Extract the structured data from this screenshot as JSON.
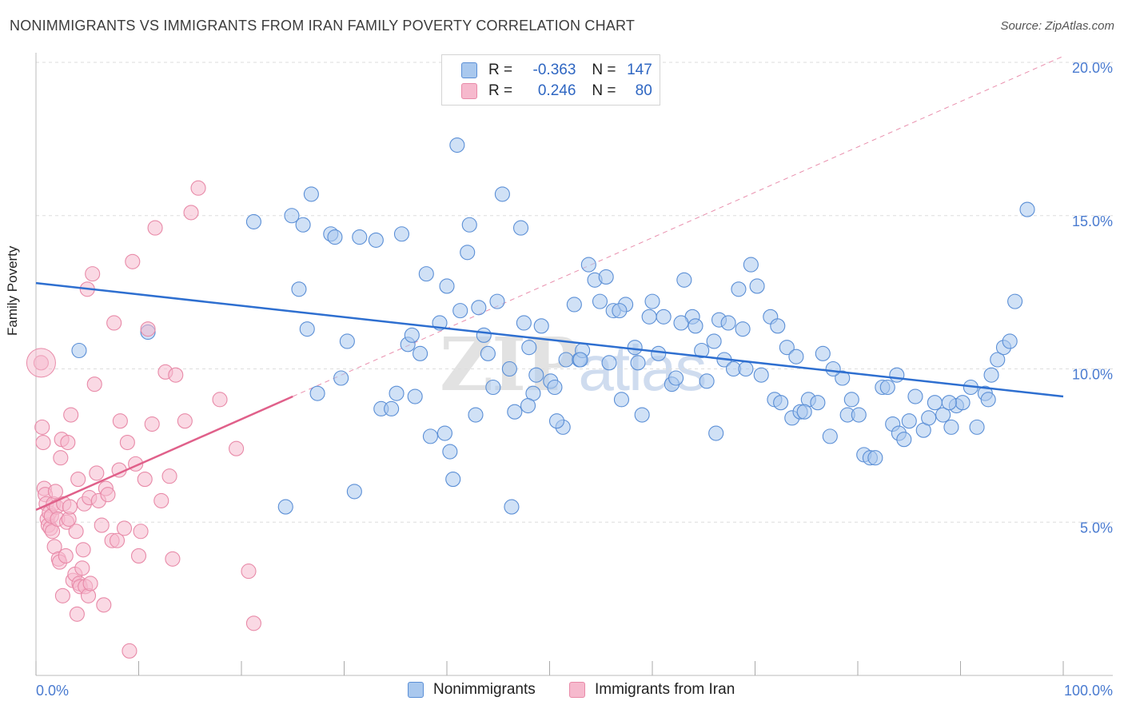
{
  "header": {
    "title": "NONIMMIGRANTS VS IMMIGRANTS FROM IRAN FAMILY POVERTY CORRELATION CHART",
    "source": "Source: ZipAtlas.com"
  },
  "watermark": {
    "zip": "ZIP",
    "atlas": "atlas"
  },
  "legend": {
    "rows": [
      {
        "r_label": "R =",
        "r_value": "-0.363",
        "n_label": "N =",
        "n_value": "147"
      },
      {
        "r_label": "R =",
        "r_value": "0.246",
        "n_label": "N =",
        "n_value": "80"
      }
    ]
  },
  "colors": {
    "blue_fill": "#a9c8ee",
    "blue_stroke": "#5b8fd6",
    "blue_line": "#2e6fd0",
    "pink_fill": "#f6b9cd",
    "pink_stroke": "#e88aa8",
    "pink_line": "#e0608a",
    "tick": "#4a7bd0",
    "grid": "#dddddd"
  },
  "chart_data": {
    "type": "scatter",
    "title": "NONIMMIGRANTS VS IMMIGRANTS FROM IRAN FAMILY POVERTY CORRELATION CHART",
    "xlabel": "",
    "ylabel": "Family Poverty",
    "xlim": [
      0,
      100
    ],
    "ylim": [
      0,
      20.6
    ],
    "x_tick_labels": [
      "0.0%",
      "100.0%"
    ],
    "y_ticks": [
      5,
      10,
      15,
      20
    ],
    "y_tick_labels": [
      "5.0%",
      "10.0%",
      "15.0%",
      "20.0%"
    ],
    "grid": true,
    "legend_position": "bottom",
    "series": [
      {
        "name": "Nonimmigrants",
        "trend": {
          "x": [
            0,
            100
          ],
          "y": [
            12.8,
            9.1
          ],
          "style": "solid"
        },
        "points": [
          [
            4.2,
            10.6
          ],
          [
            10.9,
            11.2
          ],
          [
            21.2,
            14.8
          ],
          [
            24.9,
            15.0
          ],
          [
            25.6,
            12.6
          ],
          [
            26.0,
            14.7
          ],
          [
            26.4,
            11.3
          ],
          [
            26.8,
            15.7
          ],
          [
            27.4,
            9.2
          ],
          [
            28.7,
            14.4
          ],
          [
            29.1,
            14.3
          ],
          [
            29.7,
            9.7
          ],
          [
            30.3,
            10.9
          ],
          [
            31.5,
            14.3
          ],
          [
            33.1,
            14.2
          ],
          [
            33.6,
            8.7
          ],
          [
            34.6,
            8.7
          ],
          [
            35.1,
            9.2
          ],
          [
            35.6,
            14.4
          ],
          [
            36.2,
            10.8
          ],
          [
            36.6,
            11.1
          ],
          [
            37.4,
            10.5
          ],
          [
            38.0,
            13.1
          ],
          [
            38.4,
            7.8
          ],
          [
            39.3,
            11.5
          ],
          [
            40.0,
            12.7
          ],
          [
            40.3,
            7.3
          ],
          [
            41.0,
            17.3
          ],
          [
            41.3,
            11.9
          ],
          [
            42.0,
            13.8
          ],
          [
            42.2,
            14.7
          ],
          [
            42.8,
            8.5
          ],
          [
            43.1,
            12.0
          ],
          [
            43.6,
            11.1
          ],
          [
            44.5,
            9.4
          ],
          [
            44.9,
            12.2
          ],
          [
            45.4,
            15.7
          ],
          [
            46.1,
            10.0
          ],
          [
            46.6,
            8.6
          ],
          [
            47.2,
            14.6
          ],
          [
            47.5,
            11.5
          ],
          [
            48.0,
            10.7
          ],
          [
            48.4,
            9.2
          ],
          [
            48.7,
            9.8
          ],
          [
            49.2,
            11.4
          ],
          [
            50.1,
            9.6
          ],
          [
            50.5,
            9.4
          ],
          [
            51.3,
            8.1
          ],
          [
            51.6,
            10.3
          ],
          [
            52.4,
            12.1
          ],
          [
            52.9,
            10.3
          ],
          [
            53.2,
            10.6
          ],
          [
            53.8,
            13.4
          ],
          [
            54.4,
            12.9
          ],
          [
            54.9,
            12.2
          ],
          [
            55.5,
            13.0
          ],
          [
            55.8,
            10.2
          ],
          [
            56.2,
            11.9
          ],
          [
            57.0,
            9.0
          ],
          [
            57.4,
            12.1
          ],
          [
            58.3,
            10.7
          ],
          [
            59.0,
            8.5
          ],
          [
            59.7,
            11.7
          ],
          [
            60.0,
            12.2
          ],
          [
            60.6,
            10.5
          ],
          [
            61.1,
            11.7
          ],
          [
            61.9,
            9.5
          ],
          [
            62.3,
            9.7
          ],
          [
            63.1,
            12.9
          ],
          [
            63.9,
            11.7
          ],
          [
            64.2,
            11.4
          ],
          [
            64.8,
            10.6
          ],
          [
            65.3,
            9.6
          ],
          [
            66.0,
            10.9
          ],
          [
            66.5,
            11.6
          ],
          [
            67.0,
            10.3
          ],
          [
            67.4,
            11.5
          ],
          [
            67.9,
            10.0
          ],
          [
            68.4,
            12.6
          ],
          [
            69.1,
            10.0
          ],
          [
            69.6,
            13.4
          ],
          [
            70.2,
            12.7
          ],
          [
            70.6,
            9.8
          ],
          [
            71.5,
            11.7
          ],
          [
            71.9,
            9.0
          ],
          [
            72.5,
            8.9
          ],
          [
            73.1,
            10.7
          ],
          [
            73.6,
            8.4
          ],
          [
            74.0,
            10.4
          ],
          [
            74.4,
            8.6
          ],
          [
            75.2,
            9.0
          ],
          [
            76.1,
            8.9
          ],
          [
            76.6,
            10.5
          ],
          [
            77.3,
            7.8
          ],
          [
            78.5,
            9.7
          ],
          [
            79.0,
            8.5
          ],
          [
            79.4,
            9.0
          ],
          [
            80.1,
            8.5
          ],
          [
            80.6,
            7.2
          ],
          [
            81.2,
            7.1
          ],
          [
            81.7,
            7.1
          ],
          [
            82.4,
            9.4
          ],
          [
            82.9,
            9.4
          ],
          [
            83.4,
            8.2
          ],
          [
            84.0,
            7.9
          ],
          [
            84.5,
            7.7
          ],
          [
            85.0,
            8.3
          ],
          [
            85.6,
            9.1
          ],
          [
            86.4,
            8.0
          ],
          [
            86.9,
            8.4
          ],
          [
            87.5,
            8.9
          ],
          [
            88.3,
            8.5
          ],
          [
            89.1,
            8.1
          ],
          [
            89.6,
            8.8
          ],
          [
            90.2,
            8.9
          ],
          [
            91.0,
            9.4
          ],
          [
            91.6,
            8.1
          ],
          [
            92.4,
            9.2
          ],
          [
            93.0,
            9.8
          ],
          [
            93.6,
            10.3
          ],
          [
            94.2,
            10.7
          ],
          [
            94.8,
            10.9
          ],
          [
            95.3,
            12.2
          ],
          [
            96.5,
            15.2
          ],
          [
            72.2,
            11.4
          ],
          [
            56.8,
            11.9
          ],
          [
            50.7,
            8.3
          ],
          [
            44.0,
            10.5
          ],
          [
            36.9,
            9.1
          ],
          [
            31.0,
            6.0
          ],
          [
            24.3,
            5.5
          ],
          [
            46.3,
            5.5
          ],
          [
            40.6,
            6.4
          ],
          [
            58.6,
            10.2
          ],
          [
            62.8,
            11.5
          ],
          [
            68.8,
            11.3
          ],
          [
            77.6,
            10.0
          ],
          [
            83.8,
            9.8
          ],
          [
            88.9,
            8.9
          ],
          [
            92.7,
            9.0
          ],
          [
            53.0,
            10.3
          ],
          [
            47.9,
            8.8
          ],
          [
            39.8,
            7.9
          ],
          [
            66.2,
            7.9
          ],
          [
            74.8,
            8.6
          ]
        ]
      },
      {
        "name": "Immigrants from Iran",
        "trend": {
          "x": [
            0,
            25.0
          ],
          "y": [
            5.4,
            9.1
          ],
          "style": "solid",
          "extension_to": [
            100,
            20.2
          ],
          "extension_style": "dashed"
        },
        "points": [
          [
            0.5,
            10.2
          ],
          [
            0.6,
            8.1
          ],
          [
            0.7,
            7.6
          ],
          [
            0.8,
            6.1
          ],
          [
            0.9,
            5.9
          ],
          [
            1.0,
            5.6
          ],
          [
            1.1,
            5.1
          ],
          [
            1.2,
            4.9
          ],
          [
            1.3,
            5.3
          ],
          [
            1.4,
            4.8
          ],
          [
            1.5,
            5.2
          ],
          [
            1.6,
            4.7
          ],
          [
            1.7,
            5.6
          ],
          [
            1.8,
            4.2
          ],
          [
            1.9,
            6.0
          ],
          [
            2.0,
            5.5
          ],
          [
            2.1,
            5.1
          ],
          [
            2.2,
            3.8
          ],
          [
            2.3,
            3.7
          ],
          [
            2.4,
            7.1
          ],
          [
            2.5,
            7.7
          ],
          [
            2.6,
            2.6
          ],
          [
            2.7,
            5.6
          ],
          [
            2.9,
            3.9
          ],
          [
            3.0,
            5.0
          ],
          [
            3.1,
            7.6
          ],
          [
            3.2,
            5.1
          ],
          [
            3.3,
            5.5
          ],
          [
            3.4,
            8.5
          ],
          [
            3.6,
            3.1
          ],
          [
            3.8,
            3.3
          ],
          [
            3.9,
            4.7
          ],
          [
            4.0,
            2.0
          ],
          [
            4.1,
            6.4
          ],
          [
            4.2,
            3.0
          ],
          [
            4.3,
            2.9
          ],
          [
            4.5,
            3.5
          ],
          [
            4.6,
            4.1
          ],
          [
            4.7,
            5.6
          ],
          [
            4.8,
            2.9
          ],
          [
            5.0,
            12.6
          ],
          [
            5.1,
            2.6
          ],
          [
            5.2,
            5.8
          ],
          [
            5.3,
            3.0
          ],
          [
            5.5,
            13.1
          ],
          [
            5.7,
            9.5
          ],
          [
            5.9,
            6.6
          ],
          [
            6.1,
            5.7
          ],
          [
            6.4,
            4.9
          ],
          [
            6.8,
            6.1
          ],
          [
            7.0,
            5.9
          ],
          [
            7.4,
            4.4
          ],
          [
            7.6,
            11.5
          ],
          [
            7.9,
            4.4
          ],
          [
            8.1,
            6.7
          ],
          [
            8.2,
            8.3
          ],
          [
            8.6,
            4.8
          ],
          [
            8.9,
            7.6
          ],
          [
            9.1,
            0.8
          ],
          [
            9.4,
            13.5
          ],
          [
            9.7,
            6.9
          ],
          [
            10.0,
            3.9
          ],
          [
            10.2,
            4.7
          ],
          [
            10.6,
            6.4
          ],
          [
            10.9,
            11.3
          ],
          [
            11.3,
            8.2
          ],
          [
            11.6,
            14.6
          ],
          [
            12.2,
            5.7
          ],
          [
            12.6,
            9.9
          ],
          [
            13.0,
            6.5
          ],
          [
            13.3,
            3.8
          ],
          [
            13.6,
            9.8
          ],
          [
            14.5,
            8.3
          ],
          [
            15.1,
            15.1
          ],
          [
            15.8,
            15.9
          ],
          [
            17.9,
            9.0
          ],
          [
            19.5,
            7.4
          ],
          [
            20.7,
            3.4
          ],
          [
            21.2,
            1.7
          ],
          [
            6.6,
            2.3
          ]
        ]
      }
    ]
  }
}
